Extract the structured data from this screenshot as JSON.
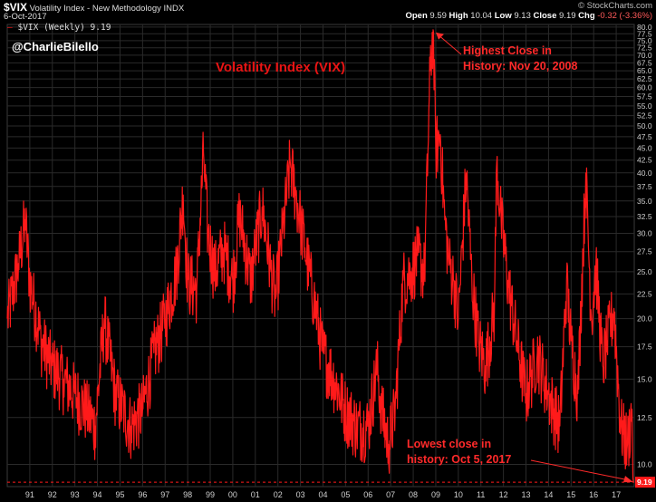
{
  "header": {
    "symbol": "$VIX",
    "name": "Volatility Index - New Methodology",
    "exchange": "INDX",
    "date": "6-Oct-2017",
    "source": "© StockCharts.com",
    "open_label": "Open",
    "open": "9.59",
    "high_label": "High",
    "high": "10.04",
    "low_label": "Low",
    "low": "9.13",
    "close_label": "Close",
    "close": "9.19",
    "chg_label": "Chg",
    "chg": "-0.32 (-3.36%)"
  },
  "legend": {
    "text": "$VIX (Weekly) 9.19"
  },
  "handle": "@CharlieBilello",
  "annotations": {
    "high_line1": "Highest Close in",
    "high_line2": "History: Nov 20, 2008",
    "low_line1": "Lowest close in",
    "low_line2": "history: Oct 5, 2017"
  },
  "colors": {
    "series": "#ff1a1a",
    "background": "#000000",
    "grid": "#2a2a2a",
    "annotation": "#ff2a2a"
  },
  "chart_data": {
    "type": "line",
    "title": "Volatility Index (VIX)",
    "series_name": "$VIX (Weekly)",
    "ylim": [
      9.0,
      81
    ],
    "yscale": "log",
    "grid": true,
    "y_ticks": [
      9.19,
      10.0,
      12.5,
      15.0,
      17.5,
      20.0,
      22.5,
      25.0,
      27.5,
      30.0,
      32.5,
      35.0,
      37.5,
      40.0,
      42.5,
      45.0,
      47.5,
      50.0,
      52.5,
      55.0,
      57.5,
      60.0,
      62.5,
      65.0,
      67.5,
      70.0,
      72.5,
      75.0,
      77.5,
      80.0
    ],
    "x_tick_labels": [
      "91",
      "92",
      "93",
      "94",
      "95",
      "96",
      "97",
      "98",
      "99",
      "00",
      "01",
      "02",
      "03",
      "04",
      "05",
      "06",
      "07",
      "08",
      "09",
      "10",
      "11",
      "12",
      "13",
      "14",
      "15",
      "16",
      "17"
    ],
    "last_value": "9.19",
    "x": [
      1990.0,
      1990.5,
      1990.8,
      1991.0,
      1991.5,
      1992.0,
      1992.5,
      1993.0,
      1993.5,
      1993.9,
      1994.3,
      1994.8,
      1995.5,
      1996.0,
      1996.5,
      1997.0,
      1997.5,
      1997.8,
      1998.0,
      1998.4,
      1998.7,
      1998.9,
      1999.2,
      1999.6,
      2000.0,
      2000.3,
      2000.8,
      2001.0,
      2001.3,
      2001.7,
      2001.9,
      2002.2,
      2002.55,
      2002.8,
      2003.0,
      2003.2,
      2003.6,
      2004.0,
      2004.5,
      2005.0,
      2005.5,
      2006.0,
      2006.4,
      2006.6,
      2006.9,
      2007.2,
      2007.55,
      2007.9,
      2008.2,
      2008.5,
      2008.75,
      2008.88,
      2009.0,
      2009.2,
      2009.4,
      2009.6,
      2009.8,
      2010.0,
      2010.35,
      2010.6,
      2010.9,
      2011.2,
      2011.6,
      2011.7,
      2011.9,
      2012.2,
      2012.6,
      2013.0,
      2013.5,
      2014.0,
      2014.5,
      2014.8,
      2015.0,
      2015.3,
      2015.65,
      2015.9,
      2016.1,
      2016.4,
      2016.6,
      2016.9,
      2017.2,
      2017.5,
      2017.7,
      2017.76
    ],
    "values": [
      20,
      26,
      32,
      24,
      18,
      16,
      15,
      14,
      13,
      12,
      20,
      14,
      12,
      13,
      17,
      20,
      25,
      36,
      24,
      23,
      44,
      30,
      25,
      28,
      24,
      33,
      24,
      28,
      34,
      25,
      22,
      30,
      42,
      36,
      32,
      28,
      22,
      17,
      15,
      13,
      12,
      12,
      16,
      13,
      11,
      13,
      24,
      25,
      27,
      25,
      65,
      79,
      45,
      48,
      32,
      26,
      24,
      20,
      40,
      24,
      18,
      16,
      21,
      42,
      32,
      24,
      18,
      14,
      17,
      14,
      12,
      24,
      18,
      14,
      40,
      20,
      26,
      16,
      18,
      21,
      12,
      11,
      13,
      9.19
    ]
  }
}
